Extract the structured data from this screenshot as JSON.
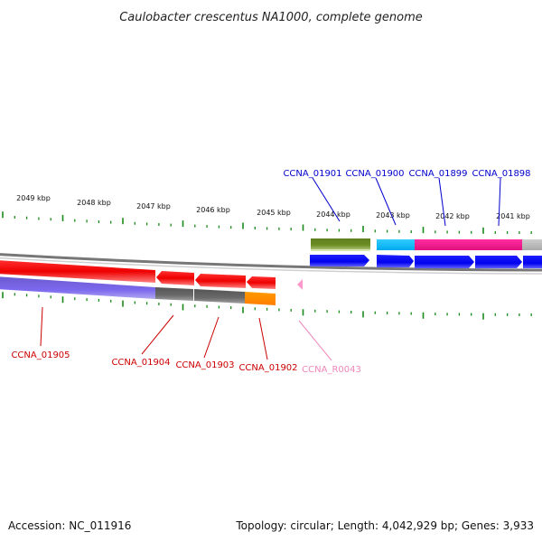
{
  "title": "Caulobacter crescentus NA1000, complete genome",
  "footer": {
    "accession": "Accession: NC_011916",
    "summary": "Topology: circular; Length: 4,042,929 bp; Genes: 3,933"
  },
  "ruler_labels": [
    "2049 kbp",
    "2048 kbp",
    "2047 kbp",
    "2046 kbp",
    "2045 kbp",
    "2044 kbp",
    "2043 kbp",
    "2042 kbp",
    "2041 kbp"
  ],
  "genes_top": [
    {
      "id": "CCNA_01901",
      "color": "#0000cc"
    },
    {
      "id": "CCNA_01900",
      "color": "#0000cc"
    },
    {
      "id": "CCNA_01899",
      "color": "#0000cc"
    },
    {
      "id": "CCNA_01898",
      "color": "#0000cc"
    }
  ],
  "genes_bottom": [
    {
      "id": "CCNA_01905",
      "color": "#cc0000"
    },
    {
      "id": "CCNA_01904",
      "color": "#cc0000"
    },
    {
      "id": "CCNA_01903",
      "color": "#cc0000"
    },
    {
      "id": "CCNA_01902",
      "color": "#cc0000"
    },
    {
      "id": "CCNA_R0043",
      "color": "#ee88bb"
    }
  ],
  "colors": {
    "forward_strand": "#0000ee",
    "reverse_strand": "#ee0000",
    "tick": "#1a8a1a",
    "backbone": "#888888"
  }
}
